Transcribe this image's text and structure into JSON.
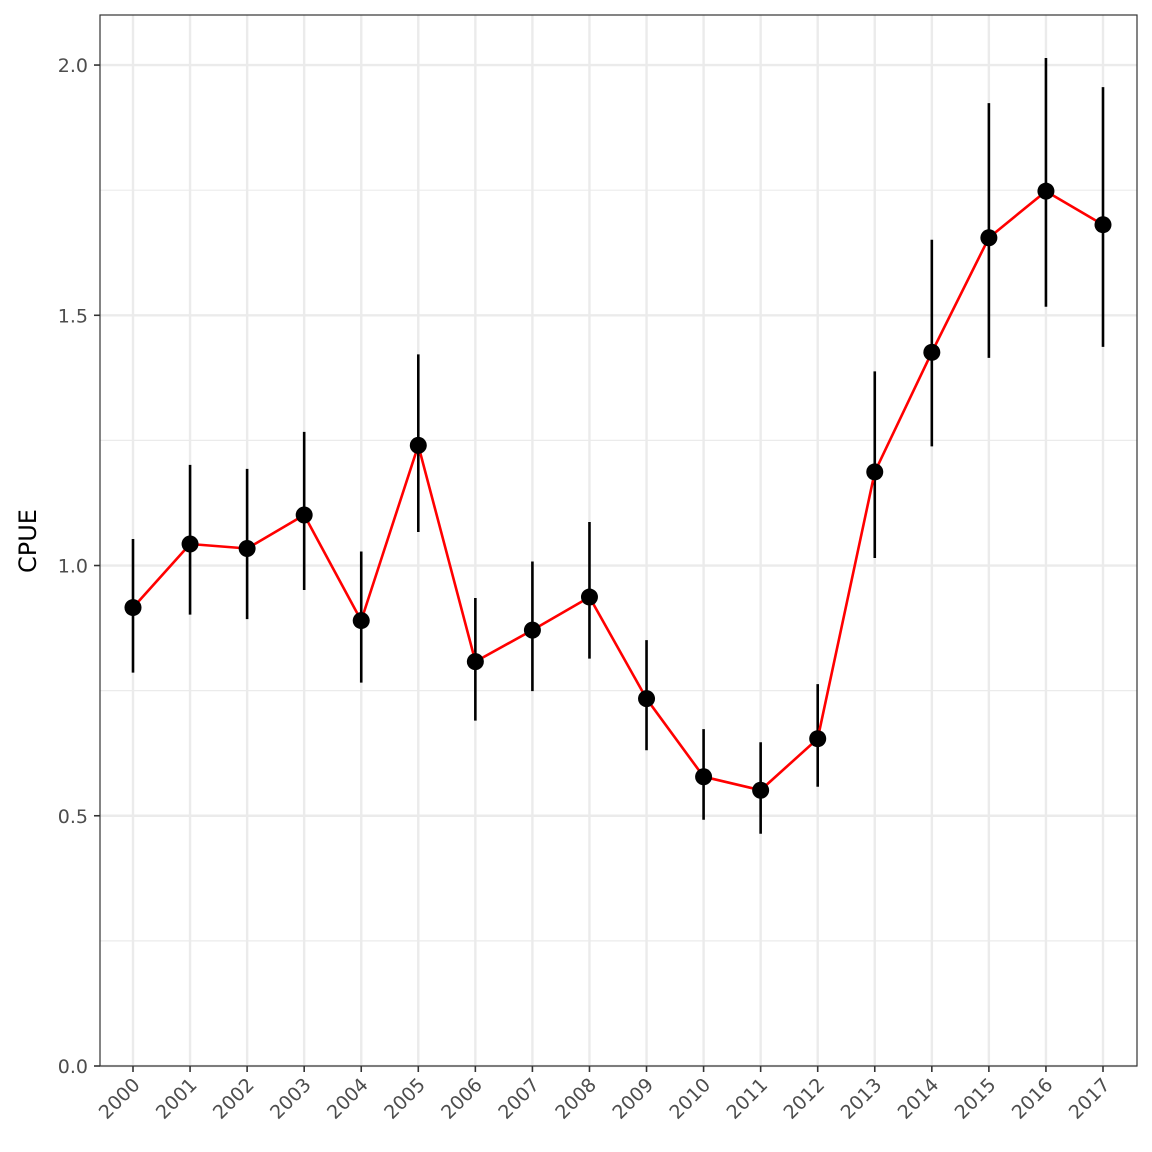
{
  "chart_data": {
    "type": "line",
    "xlabel": "",
    "ylabel": "CPUE",
    "ylim": [
      0,
      2.1
    ],
    "y_ticks": [
      "0.0",
      "0.5",
      "1.0",
      "1.5",
      "2.0"
    ],
    "y_tick_values": [
      0,
      0.5,
      1.0,
      1.5,
      2.0
    ],
    "grid": true,
    "categories": [
      "2000",
      "2001",
      "2002",
      "2003",
      "2004",
      "2005",
      "2006",
      "2007",
      "2008",
      "2009",
      "2010",
      "2011",
      "2012",
      "2013",
      "2014",
      "2015",
      "2016",
      "2017"
    ],
    "series": [
      {
        "values": [
          0.916,
          1.043,
          1.034,
          1.101,
          0.89,
          1.24,
          0.808,
          0.871,
          0.937,
          0.734,
          0.578,
          0.551,
          0.654,
          1.187,
          1.426,
          1.655,
          1.748,
          1.681
        ],
        "lower": [
          0.786,
          0.902,
          0.893,
          0.951,
          0.766,
          1.067,
          0.69,
          0.749,
          0.814,
          0.631,
          0.492,
          0.464,
          0.558,
          1.015,
          1.238,
          1.415,
          1.517,
          1.437
        ],
        "upper": [
          1.053,
          1.201,
          1.193,
          1.267,
          1.028,
          1.422,
          0.935,
          1.008,
          1.087,
          0.851,
          0.673,
          0.647,
          0.763,
          1.388,
          1.651,
          1.924,
          2.014,
          1.956
        ]
      }
    ],
    "colors": {
      "line": "#ff0000",
      "points": "#000000",
      "errorbars": "#000000",
      "grid": "#ebebeb",
      "panel_border": "#333333",
      "tick_text": "#4d4d4d"
    }
  }
}
